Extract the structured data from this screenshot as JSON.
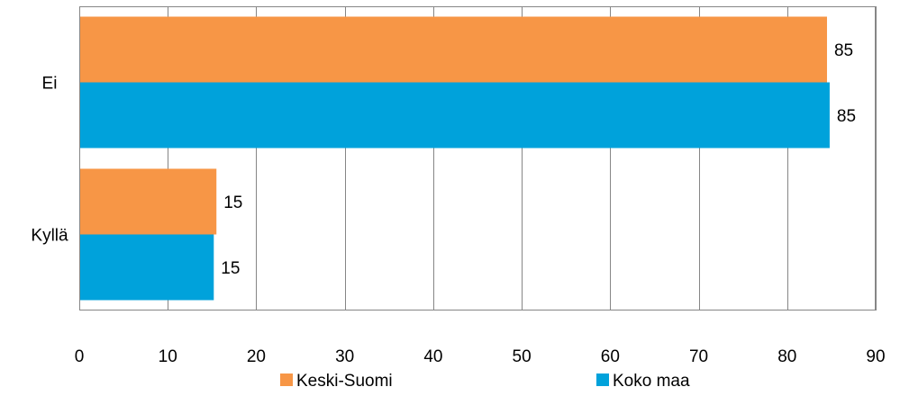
{
  "chart_data": {
    "type": "bar",
    "orientation": "horizontal",
    "categories": [
      "Ei",
      "Kyllä"
    ],
    "series": [
      {
        "name": "Keski-Suomi",
        "values": [
          85,
          15
        ],
        "color": "#F79646"
      },
      {
        "name": "Koko maa",
        "values": [
          85,
          15
        ],
        "color": "#00A2DB"
      }
    ],
    "data_labels": [
      [
        "85",
        "15"
      ],
      [
        "85",
        "15"
      ]
    ],
    "xlim": [
      0,
      90
    ],
    "xticks": [
      0,
      10,
      20,
      30,
      40,
      50,
      60,
      70,
      80,
      90
    ],
    "xtick_labels": [
      "0",
      "10",
      "20",
      "30",
      "40",
      "50",
      "60",
      "70",
      "80",
      "90"
    ],
    "grid": true,
    "legend_position": "bottom",
    "plot_visual_values": [
      [
        84.5,
        15.5
      ],
      [
        84.8,
        15.2
      ]
    ]
  }
}
